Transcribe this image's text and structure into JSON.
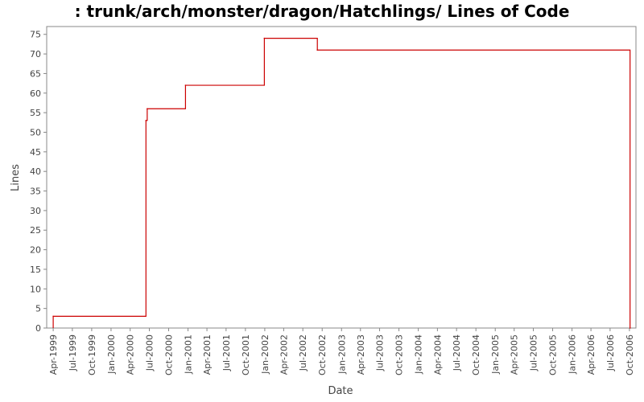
{
  "chart_data": {
    "type": "line",
    "title": ": trunk/arch/monster/dragon/Hatchlings/ Lines of Code",
    "xlabel": "Date",
    "ylabel": "Lines",
    "ylim": [
      0,
      77
    ],
    "xlim": [
      "1999-03-01",
      "2006-11-01"
    ],
    "y_ticks": [
      "0",
      "5",
      "10",
      "15",
      "20",
      "25",
      "30",
      "35",
      "40",
      "45",
      "50",
      "55",
      "60",
      "65",
      "70",
      "75"
    ],
    "x_ticks": [
      "Apr-1999",
      "Jul-1999",
      "Oct-1999",
      "Jan-2000",
      "Apr-2000",
      "Jul-2000",
      "Oct-2000",
      "Jan-2001",
      "Apr-2001",
      "Jul-2001",
      "Oct-2001",
      "Jan-2002",
      "Apr-2002",
      "Jul-2002",
      "Oct-2002",
      "Jan-2003",
      "Apr-2003",
      "Jul-2003",
      "Oct-2003",
      "Jan-2004",
      "Apr-2004",
      "Jul-2004",
      "Oct-2004",
      "Jan-2005",
      "Apr-2005",
      "Jul-2005",
      "Oct-2005",
      "Jan-2006",
      "Apr-2006",
      "Jul-2006",
      "Oct-2006"
    ],
    "series": [
      {
        "step": true,
        "color": "#cc0000",
        "x": [
          "1999-04-01",
          "2000-06-15",
          "2000-06-21",
          "2000-12-20",
          "2001-12-30",
          "2002-09-08",
          "2006-10-04"
        ],
        "values": [
          3,
          53,
          56,
          62,
          74,
          71,
          0
        ]
      }
    ],
    "grid": false,
    "plot_background": "#ffffff",
    "axis_color": "#888888"
  }
}
